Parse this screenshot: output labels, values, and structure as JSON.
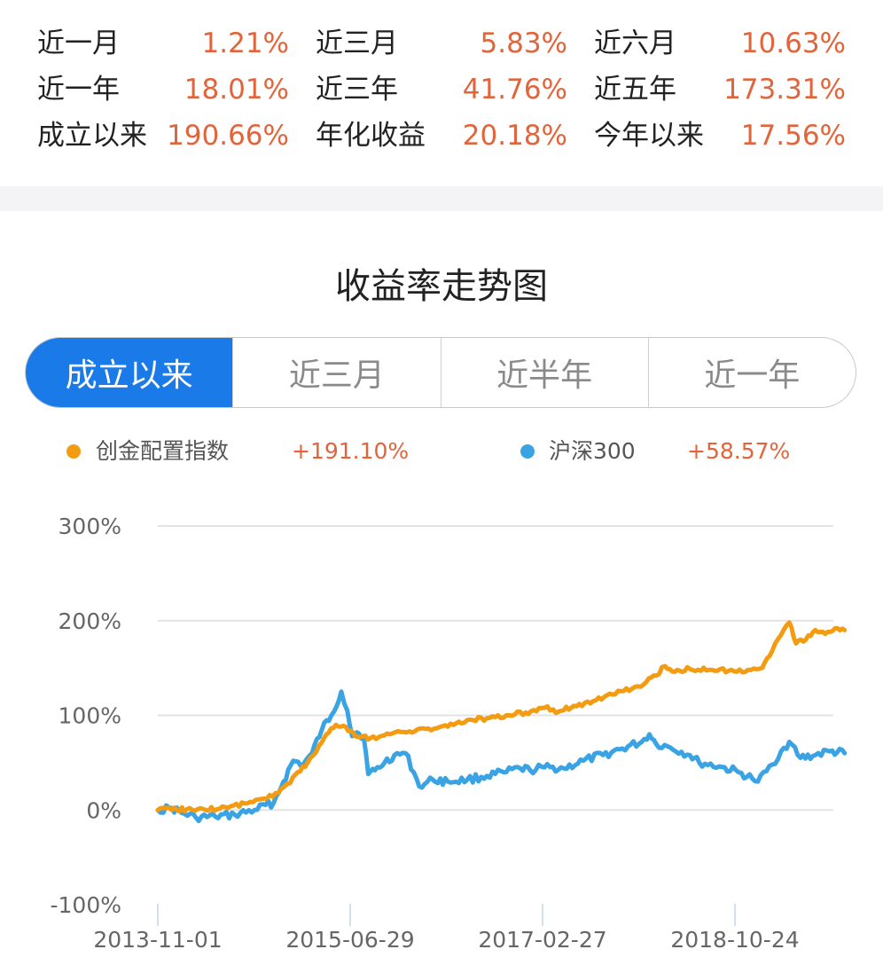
{
  "stats": [
    [
      {
        "label": "近一月",
        "value": "1.21%"
      },
      {
        "label": "近三月",
        "value": "5.83%"
      },
      {
        "label": "近六月",
        "value": "10.63%"
      }
    ],
    [
      {
        "label": "近一年",
        "value": "18.01%"
      },
      {
        "label": "近三年",
        "value": "41.76%"
      },
      {
        "label": "近五年",
        "value": "173.31%"
      }
    ],
    [
      {
        "label": "成立以来",
        "value": "190.66%"
      },
      {
        "label": "年化收益",
        "value": "20.18%"
      },
      {
        "label": "今年以来",
        "value": "17.56%"
      }
    ]
  ],
  "chart_title": "收益率走势图",
  "tabs": [
    "成立以来",
    "近三月",
    "近半年",
    "近一年"
  ],
  "active_tab": 0,
  "legend": [
    {
      "name": "创金配置指数",
      "value": "+191.10%",
      "color": "#f39c12"
    },
    {
      "name": "沪深300",
      "value": "+58.57%",
      "color": "#3aa3e3"
    }
  ],
  "colors": {
    "accent": "#1a7ae8",
    "value_red": "#e2643b",
    "series_orange": "#f39c12",
    "series_blue": "#3aa3e3"
  },
  "chart_data": {
    "type": "line",
    "title": "收益率走势图",
    "xlabel": "",
    "ylabel": "",
    "ylim": [
      -100,
      300
    ],
    "yticks": [
      "300%",
      "200%",
      "100%",
      "0%",
      "-100%"
    ],
    "xticks": [
      "2013-11-01",
      "2015-06-29",
      "2017-02-27",
      "2018-10-24"
    ],
    "grid": true,
    "legend_position": "top",
    "series": [
      {
        "name": "创金配置指数",
        "color": "#f39c12",
        "points": [
          [
            "2013-11-01",
            0
          ],
          [
            "2013-12-15",
            0
          ],
          [
            "2014-02-01",
            1
          ],
          [
            "2014-04-01",
            0
          ],
          [
            "2014-06-01",
            3
          ],
          [
            "2014-08-01",
            7
          ],
          [
            "2014-10-01",
            12
          ],
          [
            "2014-11-15",
            18
          ],
          [
            "2014-12-15",
            28
          ],
          [
            "2015-01-15",
            40
          ],
          [
            "2015-02-15",
            50
          ],
          [
            "2015-03-15",
            62
          ],
          [
            "2015-04-15",
            80
          ],
          [
            "2015-05-15",
            90
          ],
          [
            "2015-06-15",
            88
          ],
          [
            "2015-07-15",
            78
          ],
          [
            "2015-09-01",
            76
          ],
          [
            "2015-11-01",
            80
          ],
          [
            "2016-01-01",
            83
          ],
          [
            "2016-03-01",
            86
          ],
          [
            "2016-05-01",
            88
          ],
          [
            "2016-07-01",
            95
          ],
          [
            "2016-09-01",
            97
          ],
          [
            "2016-11-01",
            100
          ],
          [
            "2017-01-01",
            103
          ],
          [
            "2017-03-01",
            108
          ],
          [
            "2017-04-15",
            104
          ],
          [
            "2017-06-01",
            110
          ],
          [
            "2017-08-01",
            115
          ],
          [
            "2017-10-01",
            122
          ],
          [
            "2017-12-01",
            128
          ],
          [
            "2018-01-15",
            135
          ],
          [
            "2018-02-15",
            142
          ],
          [
            "2018-03-15",
            152
          ],
          [
            "2018-04-15",
            146
          ],
          [
            "2018-06-01",
            149
          ],
          [
            "2018-08-01",
            148
          ],
          [
            "2018-10-01",
            147
          ],
          [
            "2018-12-01",
            148
          ],
          [
            "2019-01-15",
            150
          ],
          [
            "2019-02-15",
            168
          ],
          [
            "2019-03-15",
            185
          ],
          [
            "2019-04-10",
            198
          ],
          [
            "2019-05-01",
            176
          ],
          [
            "2019-06-01",
            180
          ],
          [
            "2019-07-01",
            190
          ],
          [
            "2019-08-01",
            186
          ],
          [
            "2019-09-01",
            192
          ],
          [
            "2019-10-01",
            190
          ]
        ]
      },
      {
        "name": "沪深300",
        "color": "#3aa3e3",
        "points": [
          [
            "2013-11-01",
            0
          ],
          [
            "2013-12-15",
            2
          ],
          [
            "2014-01-15",
            -3
          ],
          [
            "2014-03-01",
            -8
          ],
          [
            "2014-05-01",
            -7
          ],
          [
            "2014-07-01",
            -5
          ],
          [
            "2014-09-01",
            0
          ],
          [
            "2014-11-01",
            8
          ],
          [
            "2014-12-01",
            30
          ],
          [
            "2015-01-01",
            52
          ],
          [
            "2015-02-01",
            48
          ],
          [
            "2015-03-01",
            60
          ],
          [
            "2015-04-01",
            85
          ],
          [
            "2015-05-01",
            100
          ],
          [
            "2015-06-01",
            125
          ],
          [
            "2015-06-20",
            105
          ],
          [
            "2015-07-05",
            78
          ],
          [
            "2015-07-20",
            82
          ],
          [
            "2015-08-10",
            78
          ],
          [
            "2015-08-25",
            38
          ],
          [
            "2015-09-15",
            42
          ],
          [
            "2015-10-15",
            50
          ],
          [
            "2015-11-15",
            58
          ],
          [
            "2015-12-20",
            60
          ],
          [
            "2016-01-15",
            40
          ],
          [
            "2016-02-01",
            25
          ],
          [
            "2016-03-15",
            32
          ],
          [
            "2016-05-01",
            30
          ],
          [
            "2016-07-01",
            32
          ],
          [
            "2016-09-01",
            36
          ],
          [
            "2016-11-01",
            40
          ],
          [
            "2016-12-15",
            44
          ],
          [
            "2017-01-15",
            42
          ],
          [
            "2017-03-01",
            45
          ],
          [
            "2017-05-01",
            44
          ],
          [
            "2017-07-01",
            52
          ],
          [
            "2017-09-01",
            58
          ],
          [
            "2017-11-01",
            65
          ],
          [
            "2018-01-01",
            72
          ],
          [
            "2018-01-25",
            80
          ],
          [
            "2018-02-15",
            70
          ],
          [
            "2018-04-01",
            66
          ],
          [
            "2018-06-01",
            58
          ],
          [
            "2018-07-01",
            50
          ],
          [
            "2018-09-01",
            46
          ],
          [
            "2018-11-01",
            40
          ],
          [
            "2018-12-15",
            33
          ],
          [
            "2019-01-01",
            30
          ],
          [
            "2019-02-15",
            48
          ],
          [
            "2019-03-15",
            62
          ],
          [
            "2019-04-10",
            72
          ],
          [
            "2019-05-15",
            55
          ],
          [
            "2019-07-01",
            58
          ],
          [
            "2019-08-15",
            62
          ],
          [
            "2019-10-01",
            60
          ]
        ]
      }
    ]
  }
}
